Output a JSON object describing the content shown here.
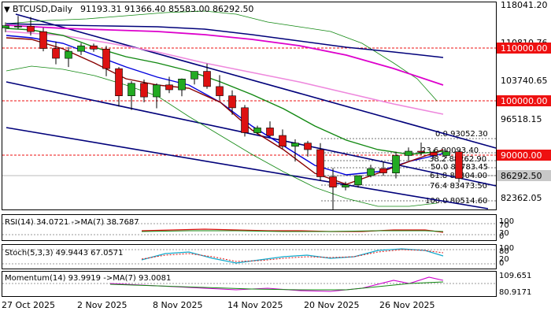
{
  "header": {
    "symbol": "BTCUSD,Daily",
    "ohlc": "91193.31 91366.40 85583.00 86292.50"
  },
  "price_axis": {
    "labels": [
      "118041.20",
      "110810.76",
      "103740.65",
      "96518.15",
      "82362.05"
    ],
    "red_levels": [
      "110000.00",
      "100000.00",
      "90000.00"
    ],
    "current_price": "86292.50"
  },
  "fib_labels": [
    "0.0 93052.30",
    "23.6 90093.40",
    "38.2 88262.90",
    "50.0 86783.45",
    "61.8 85304.00",
    "76.4 83473.50",
    "100.0 80514.60"
  ],
  "x_axis": {
    "labels": [
      "27 Oct 2025",
      "2 Nov 2025",
      "8 Nov 2025",
      "14 Nov 2025",
      "20 Nov 2025",
      "26 Nov 2025"
    ]
  },
  "rsi_panel": {
    "label": "RSI(14) 34.0721   ->MA(7) 38.7687",
    "scale": [
      "100",
      "70",
      "30",
      "0"
    ]
  },
  "stoch_panel": {
    "label": "Stoch(5,3,3) 49.9443 67.0571",
    "scale": [
      "100",
      "80",
      "20",
      "0"
    ]
  },
  "momentum_panel": {
    "label": "Momentum(14) 93.9919   ->MA(7) 93.0081",
    "scale": [
      "109.651",
      "80.9171"
    ]
  },
  "colors": {
    "bull": "#22aa22",
    "bear": "#dd1111",
    "level_red": "#ee1111",
    "channel": "#00007a",
    "ma_magenta": "#dd00cc",
    "ma_pink": "#ee88dd",
    "ma_green": "#118811",
    "ma_blue": "#0000dd",
    "ma_darkred": "#880000"
  },
  "chart_data": {
    "type": "candlestick",
    "symbol": "BTCUSD",
    "timeframe": "Daily",
    "ylim": [
      80000,
      118041.2
    ],
    "x": [
      "26 Oct",
      "27 Oct",
      "28 Oct",
      "29 Oct",
      "30 Oct",
      "31 Oct",
      "1 Nov",
      "2 Nov",
      "3 Nov",
      "4 Nov",
      "5 Nov",
      "6 Nov",
      "7 Nov",
      "8 Nov",
      "9 Nov",
      "10 Nov",
      "11 Nov",
      "12 Nov",
      "13 Nov",
      "14 Nov",
      "15 Nov",
      "16 Nov",
      "17 Nov",
      "18 Nov",
      "19 Nov",
      "20 Nov",
      "21 Nov",
      "22 Nov",
      "23 Nov",
      "24 Nov",
      "25 Nov",
      "26 Nov",
      "27 Nov",
      "28 Nov",
      "29 Nov",
      "30 Nov",
      "1 Dec"
    ],
    "series": [
      {
        "name": "open",
        "values": [
          114000,
          114300,
          114300,
          113300,
          110200,
          108400,
          109700,
          110700,
          110100,
          106500,
          101500,
          103800,
          101300,
          103500,
          102600,
          104600,
          106000,
          103200,
          101500,
          99300,
          94700,
          95600,
          94200,
          92200,
          92800,
          91600,
          86600,
          84700,
          85100,
          86800,
          88100,
          87300,
          90500,
          91300,
          91100,
          90500,
          91200
        ]
      },
      {
        "name": "high",
        "values": [
          115000,
          116200,
          116000,
          114000,
          111500,
          110500,
          111200,
          111100,
          110700,
          106800,
          104200,
          104500,
          103800,
          105000,
          104700,
          105800,
          107400,
          105300,
          102500,
          99800,
          96000,
          96800,
          95300,
          93500,
          93200,
          92800,
          88200,
          85700,
          86700,
          88800,
          89400,
          91200,
          92000,
          92900,
          91600,
          91400,
          91366
        ]
      },
      {
        "name": "low",
        "values": [
          113200,
          113800,
          112600,
          109700,
          107300,
          106800,
          109000,
          109600,
          105100,
          99500,
          98900,
          100300,
          99200,
          102000,
          101400,
          103600,
          102800,
          100700,
          98000,
          94000,
          94400,
          93900,
          91800,
          89400,
          90300,
          85800,
          80600,
          84100,
          84600,
          86500,
          86800,
          86300,
          89500,
          90600,
          89800,
          90000,
          85583
        ]
      },
      {
        "name": "close",
        "values": [
          114400,
          114300,
          113300,
          110200,
          108400,
          109700,
          110700,
          110100,
          106500,
          101500,
          103800,
          101300,
          103500,
          102600,
          104600,
          106000,
          103200,
          101500,
          99300,
          94700,
          95600,
          94200,
          92200,
          92800,
          91600,
          86600,
          84700,
          85100,
          86800,
          88100,
          87300,
          90500,
          91300,
          91100,
          90500,
          91200,
          86292.5
        ]
      }
    ]
  }
}
